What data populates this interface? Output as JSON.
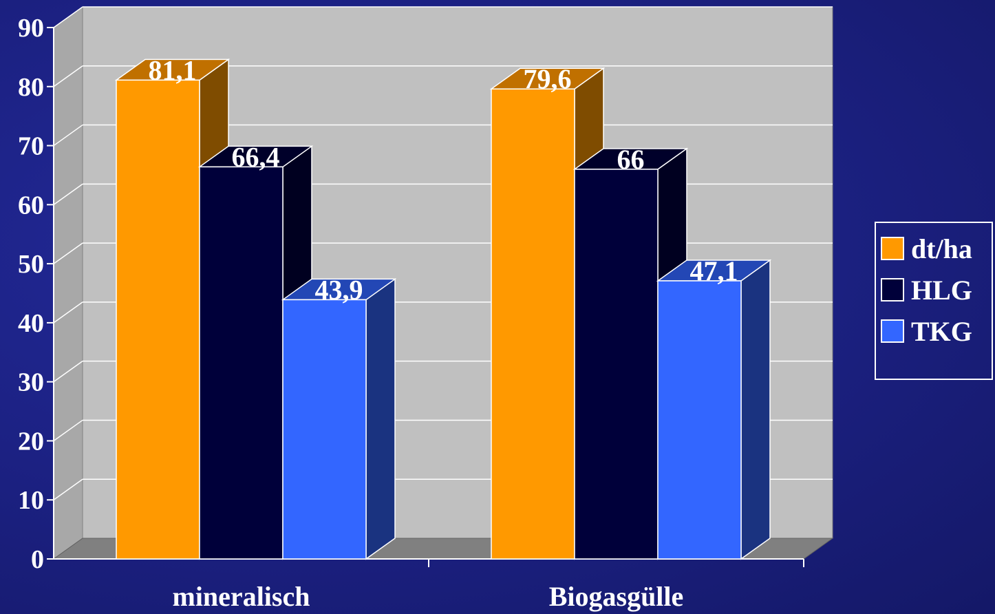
{
  "chart_data": {
    "type": "bar",
    "categories": [
      "mineralisch",
      "Biogasgülle"
    ],
    "series": [
      {
        "name": "dt/ha",
        "values": [
          81.1,
          79.6
        ],
        "labels": [
          "81,1",
          "79,6"
        ],
        "color": "#ff9900",
        "top": "#c07000",
        "side": "#7f4c00"
      },
      {
        "name": "HLG",
        "values": [
          66.4,
          66.0
        ],
        "labels": [
          "66,4",
          "66"
        ],
        "color": "#00003a",
        "top": "#00002a",
        "side": "#000020"
      },
      {
        "name": "TKG",
        "values": [
          43.9,
          47.1
        ],
        "labels": [
          "43,9",
          "47,1"
        ],
        "color": "#3366ff",
        "top": "#2347b5",
        "side": "#1a3380"
      }
    ],
    "ylim": [
      0,
      90
    ],
    "yticks": [
      "0",
      "10",
      "20",
      "30",
      "40",
      "50",
      "60",
      "70",
      "80",
      "90"
    ],
    "grid": true,
    "legend": "right"
  }
}
